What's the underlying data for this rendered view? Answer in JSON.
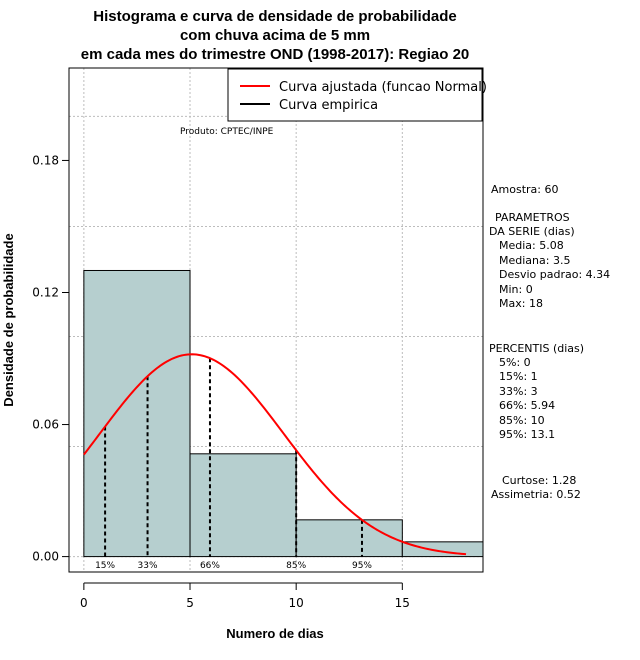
{
  "chart_data": {
    "type": "bar",
    "title_lines": [
      "Histograma e curva de densidade de probabilidade",
      "com chuva acima de 5 mm",
      "em cada mes do trimestre OND (1998-2017): Regiao 20"
    ],
    "xlabel": "Numero de dias",
    "ylabel": "Densidade de probabilidade",
    "xlim": [
      -0.7,
      18.8
    ],
    "ylim": [
      -0.007,
      0.222
    ],
    "x_ticks": [
      0,
      5,
      10,
      15
    ],
    "x_tick_labels": [
      "0",
      "5",
      "10",
      "15"
    ],
    "y_ticks": [
      0.0,
      0.06,
      0.12,
      0.18
    ],
    "y_tick_labels": [
      "0.00",
      "0.06",
      "0.12",
      "0.18"
    ],
    "grid": true,
    "bins": [
      {
        "from": 0,
        "to": 5,
        "density": 0.13
      },
      {
        "from": 5,
        "to": 10,
        "density": 0.0467
      },
      {
        "from": 10,
        "to": 15,
        "density": 0.0167
      },
      {
        "from": 15,
        "to": 20,
        "density": 0.0067
      }
    ],
    "fitted_curve": {
      "name": "Curva ajustada (funcao Normal)",
      "color": "#ff0000",
      "mean": 5.08,
      "sd": 4.34,
      "x_range": [
        0,
        18
      ]
    },
    "empirical_curve": {
      "name": "Curva empirica",
      "color": "#000000"
    },
    "percentiles": [
      {
        "label": "15%",
        "x": 1
      },
      {
        "label": "33%",
        "x": 3
      },
      {
        "label": "66%",
        "x": 5.94
      },
      {
        "label": "85%",
        "x": 10
      },
      {
        "label": "95%",
        "x": 13.1
      }
    ],
    "source": "Produto: CPTEC/INPE",
    "bar_color": "#b6cfcf",
    "legend_position": "top-right"
  },
  "stats": {
    "amostra": "Amostra: 60",
    "param_title_1": "PARAMETROS",
    "param_title_2": "DA SERIE (dias)",
    "media": "Media: 5.08",
    "mediana": "Mediana: 3.5",
    "desvio": "Desvio padrao: 4.34",
    "min": "Min: 0",
    "max": "Max: 18",
    "percentis_title": "PERCENTIS (dias)",
    "p5": "5%: 0",
    "p15": "15%: 1",
    "p33": "33%: 3",
    "p66": "66%: 5.94",
    "p85": "85%: 10",
    "p95": "95%: 13.1",
    "curtose": "Curtose: 1.28",
    "assimetria": "Assimetria: 0.52"
  }
}
